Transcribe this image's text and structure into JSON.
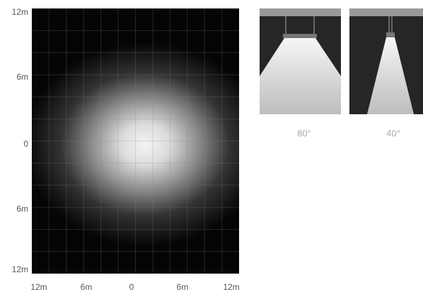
{
  "plot": {
    "y_labels": [
      "12m",
      "6m",
      "0",
      "6m",
      "12m"
    ],
    "x_labels": [
      "12m",
      "6m",
      "0",
      "6m",
      "12m"
    ]
  },
  "beams": [
    {
      "label": "80°"
    },
    {
      "label": "40°"
    }
  ]
}
